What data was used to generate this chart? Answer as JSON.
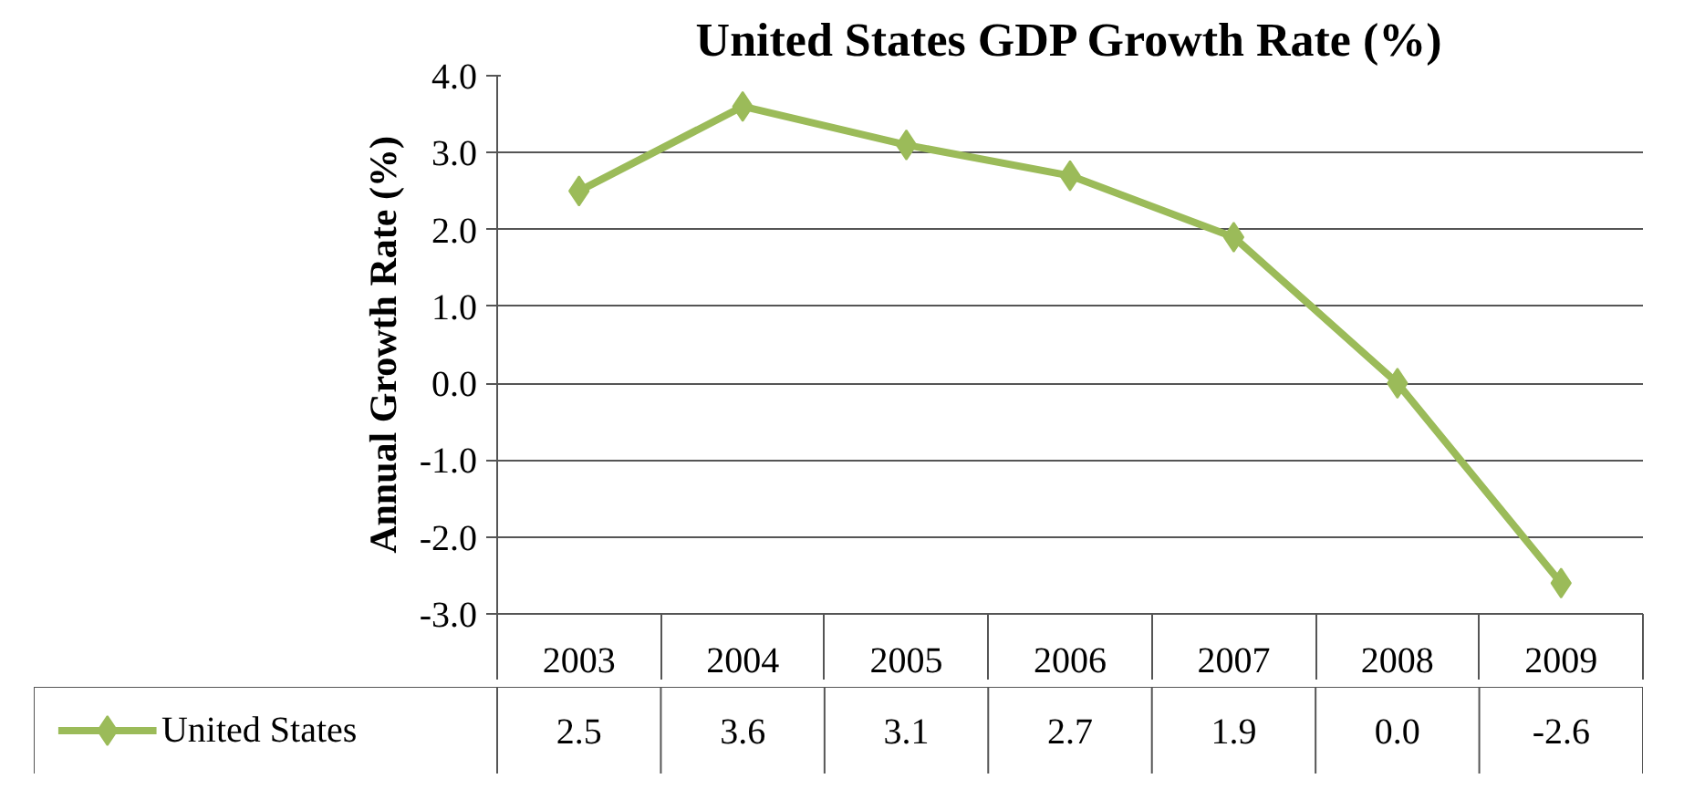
{
  "chart_data": {
    "type": "line",
    "title": "United States GDP Growth Rate (%)",
    "ylabel": "Annual Growth Rate (%)",
    "categories": [
      "2003",
      "2004",
      "2005",
      "2006",
      "2007",
      "2008",
      "2009"
    ],
    "series": [
      {
        "name": "United States",
        "color": "#9bbb59",
        "values": [
          2.5,
          3.6,
          3.1,
          2.7,
          1.9,
          0.0,
          -2.6
        ],
        "value_labels": [
          "2.5",
          "3.6",
          "3.1",
          "2.7",
          "1.9",
          "0.0",
          "-2.6"
        ]
      }
    ],
    "ylim": [
      -3,
      4
    ],
    "yticks": [
      {
        "value": -3,
        "label": "-3.0"
      },
      {
        "value": -2,
        "label": "-2.0"
      },
      {
        "value": -1,
        "label": "-1.0"
      },
      {
        "value": 0,
        "label": "0.0"
      },
      {
        "value": 1,
        "label": "1.0"
      },
      {
        "value": 2,
        "label": "2.0"
      },
      {
        "value": 3,
        "label": "3.0"
      },
      {
        "value": 4,
        "label": "4.0"
      }
    ],
    "grid": "y",
    "marker": "diamond",
    "line_style": "solid",
    "legend": "bottom"
  }
}
